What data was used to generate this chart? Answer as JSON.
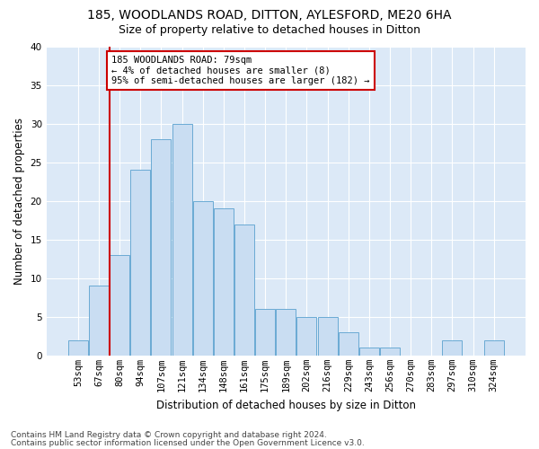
{
  "title": "185, WOODLANDS ROAD, DITTON, AYLESFORD, ME20 6HA",
  "subtitle": "Size of property relative to detached houses in Ditton",
  "xlabel": "Distribution of detached houses by size in Ditton",
  "ylabel": "Number of detached properties",
  "bar_labels": [
    "53sqm",
    "67sqm",
    "80sqm",
    "94sqm",
    "107sqm",
    "121sqm",
    "134sqm",
    "148sqm",
    "161sqm",
    "175sqm",
    "189sqm",
    "202sqm",
    "216sqm",
    "229sqm",
    "243sqm",
    "256sqm",
    "270sqm",
    "283sqm",
    "297sqm",
    "310sqm",
    "324sqm"
  ],
  "bar_values": [
    2,
    9,
    13,
    24,
    28,
    30,
    20,
    19,
    17,
    6,
    6,
    5,
    5,
    3,
    1,
    1,
    0,
    0,
    2,
    0,
    2
  ],
  "bar_color": "#c9ddf2",
  "bar_edge_color": "#6aaad4",
  "vline_color": "#cc0000",
  "annotation_text": "185 WOODLANDS ROAD: 79sqm\n← 4% of detached houses are smaller (8)\n95% of semi-detached houses are larger (182) →",
  "annotation_box_color": "#ffffff",
  "annotation_box_edge_color": "#cc0000",
  "ylim": [
    0,
    40
  ],
  "yticks": [
    0,
    5,
    10,
    15,
    20,
    25,
    30,
    35,
    40
  ],
  "footer_line1": "Contains HM Land Registry data © Crown copyright and database right 2024.",
  "footer_line2": "Contains public sector information licensed under the Open Government Licence v3.0.",
  "fig_bg_color": "#ffffff",
  "plot_bg_color": "#dce9f7",
  "grid_color": "#ffffff",
  "title_fontsize": 10,
  "subtitle_fontsize": 9,
  "axis_label_fontsize": 8.5,
  "tick_fontsize": 7.5,
  "annotation_fontsize": 7.5,
  "footer_fontsize": 6.5
}
